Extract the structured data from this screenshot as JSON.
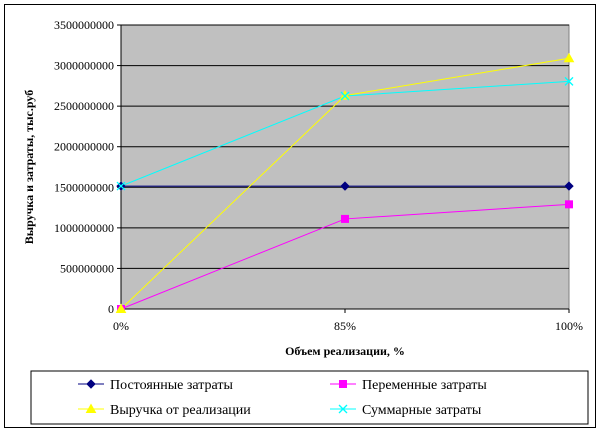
{
  "chart_data": {
    "type": "line",
    "categories": [
      "0%",
      "85%",
      "100%"
    ],
    "series": [
      {
        "name": "Постоянные затраты",
        "values": [
          1515000000,
          1515000000,
          1515000000
        ],
        "color": "#000080",
        "marker": "diamond"
      },
      {
        "name": "Переменные затраты",
        "values": [
          0,
          1110000000,
          1290000000
        ],
        "color": "#ff00ff",
        "marker": "square"
      },
      {
        "name": "Выручка от реализации",
        "values": [
          0,
          2630000000,
          3090000000
        ],
        "color": "#ffff00",
        "marker": "triangle"
      },
      {
        "name": "Суммарные затраты",
        "values": [
          1515000000,
          2625000000,
          2805000000
        ],
        "color": "#00ffff",
        "marker": "x"
      }
    ],
    "xlabel": "Объем реализации, %",
    "ylabel": "Выручка и затраты, тыс.руб",
    "ylim": [
      0,
      3500000000
    ],
    "yticks": [
      0,
      500000000,
      1000000000,
      1500000000,
      2000000000,
      2500000000,
      3000000000,
      3500000000
    ],
    "ytick_labels": [
      "0",
      "500000000",
      "1000000000",
      "1500000000",
      "2000000000",
      "2500000000",
      "3000000000",
      "3500000000"
    ],
    "plot_background": "#c0c0c0",
    "grid": true,
    "legend_position": "bottom"
  }
}
